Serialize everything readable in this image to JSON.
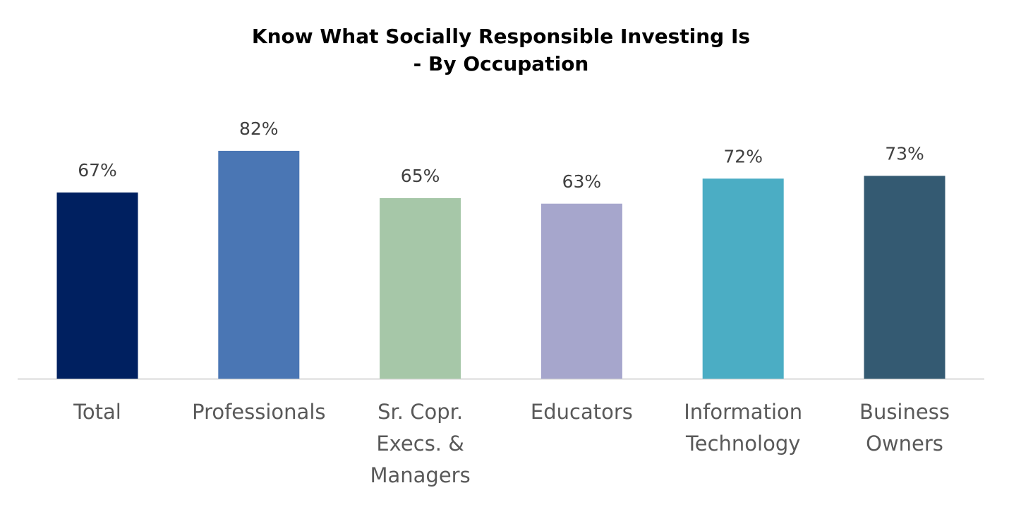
{
  "chart_data": {
    "type": "bar",
    "title": [
      "Know What Socially Responsible Investing Is",
      "- By Occupation"
    ],
    "categories": [
      "Total",
      "Professionals",
      "Sr. Copr. Execs. & Managers",
      "Educators",
      "Information Technology",
      "Business Owners"
    ],
    "values": [
      67,
      82,
      65,
      63,
      72,
      73
    ],
    "value_labels": [
      "67%",
      "82%",
      "65%",
      "63%",
      "72%",
      "73%"
    ],
    "colors": [
      "#002060",
      "#4a76b4",
      "#a6c7a8",
      "#a6a6cc",
      "#4badc4",
      "#345a72"
    ]
  }
}
